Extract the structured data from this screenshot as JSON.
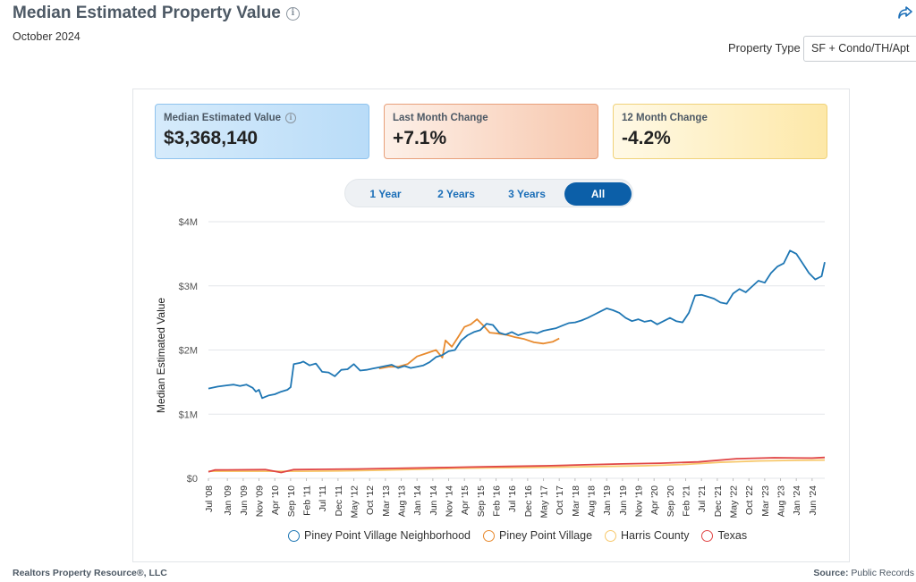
{
  "header": {
    "title": "Median Estimated Property Value",
    "subtitle": "October 2024"
  },
  "filter": {
    "label": "Property Type",
    "value": "SF + Condo/TH/Apt"
  },
  "cards": [
    {
      "label": "Median Estimated Value",
      "value": "$3,368,140"
    },
    {
      "label": "Last Month Change",
      "value": "+7.1%"
    },
    {
      "label": "12 Month Change",
      "value": "-4.2%"
    }
  ],
  "range_buttons": [
    "1 Year",
    "2 Years",
    "3 Years",
    "All"
  ],
  "active_range": "All",
  "footer": {
    "left": "Realtors Property Resource®, LLC",
    "source_label": "Source:",
    "source_value": "Public Records"
  },
  "colors": {
    "neighborhood": "#1f77b4",
    "village": "#e88a2e",
    "county": "#f7c86b",
    "texas": "#e04646"
  },
  "chart_data": {
    "type": "line",
    "ylabel": "Median Estimated Value",
    "xlabel": "",
    "ylim": [
      0,
      4000000
    ],
    "y_ticks": [
      0,
      1000000,
      2000000,
      3000000,
      4000000
    ],
    "y_tick_labels": [
      "$0",
      "$1M",
      "$2M",
      "$3M",
      "$4M"
    ],
    "x_tick_labels": [
      "Jul '08",
      "Jan '09",
      "Jun '09",
      "Nov '09",
      "Apr '10",
      "Sep '10",
      "Feb '11",
      "Jul '11",
      "Dec '11",
      "May '12",
      "Oct '12",
      "Mar '13",
      "Aug '13",
      "Jan '14",
      "Jun '14",
      "Nov '14",
      "Apr '15",
      "Sep '15",
      "Feb '16",
      "Jul '16",
      "Dec '16",
      "May '17",
      "Oct '17",
      "Mar '18",
      "Aug '18",
      "Jan '19",
      "Jun '19",
      "Nov '19",
      "Apr '20",
      "Sep '20",
      "Feb '21",
      "Jul '21",
      "Dec '21",
      "May '22",
      "Oct '22",
      "Mar '23",
      "Aug '23",
      "Jan '24",
      "Jun '24"
    ],
    "legend": "bottom",
    "grid": true,
    "series": [
      {
        "name": "Piney Point Village Neighborhood",
        "color": "#1f77b4",
        "x": [
          "2008-07",
          "2008-10",
          "2009-01",
          "2009-03",
          "2009-05",
          "2009-07",
          "2009-09",
          "2009-10",
          "2009-11",
          "2009-12",
          "2010-02",
          "2010-04",
          "2010-06",
          "2010-08",
          "2010-09",
          "2010-10",
          "2010-12",
          "2011-01",
          "2011-03",
          "2011-05",
          "2011-07",
          "2011-09",
          "2011-11",
          "2012-01",
          "2012-03",
          "2012-05",
          "2012-07",
          "2012-09",
          "2012-11",
          "2013-01",
          "2013-03",
          "2013-05",
          "2013-07",
          "2013-09",
          "2013-11",
          "2014-01",
          "2014-03",
          "2014-05",
          "2014-07",
          "2014-09",
          "2014-11",
          "2015-01",
          "2015-03",
          "2015-05",
          "2015-07",
          "2015-09",
          "2015-11",
          "2016-01",
          "2016-03",
          "2016-05",
          "2016-07",
          "2016-09",
          "2016-11",
          "2017-01",
          "2017-03",
          "2017-05",
          "2017-07",
          "2017-09",
          "2017-11",
          "2018-01",
          "2018-03",
          "2018-05",
          "2018-07",
          "2018-09",
          "2018-11",
          "2019-01",
          "2019-03",
          "2019-05",
          "2019-07",
          "2019-09",
          "2019-11",
          "2020-01",
          "2020-03",
          "2020-05",
          "2020-07",
          "2020-09",
          "2020-11",
          "2021-01",
          "2021-03",
          "2021-05",
          "2021-07",
          "2021-09",
          "2021-11",
          "2022-01",
          "2022-03",
          "2022-05",
          "2022-07",
          "2022-09",
          "2022-11",
          "2023-01",
          "2023-03",
          "2023-05",
          "2023-07",
          "2023-09",
          "2023-11",
          "2024-01",
          "2024-03",
          "2024-05",
          "2024-07",
          "2024-09",
          "2024-10"
        ],
        "values": [
          1400000,
          1430000,
          1450000,
          1460000,
          1440000,
          1460000,
          1410000,
          1350000,
          1380000,
          1250000,
          1290000,
          1310000,
          1350000,
          1380000,
          1420000,
          1780000,
          1800000,
          1820000,
          1760000,
          1790000,
          1660000,
          1650000,
          1590000,
          1690000,
          1700000,
          1780000,
          1680000,
          1690000,
          1710000,
          1730000,
          1750000,
          1770000,
          1720000,
          1750000,
          1720000,
          1740000,
          1760000,
          1810000,
          1890000,
          1920000,
          1980000,
          2000000,
          2150000,
          2230000,
          2280000,
          2310000,
          2410000,
          2390000,
          2270000,
          2240000,
          2280000,
          2230000,
          2260000,
          2280000,
          2260000,
          2300000,
          2320000,
          2340000,
          2380000,
          2420000,
          2430000,
          2460000,
          2500000,
          2550000,
          2600000,
          2650000,
          2620000,
          2580000,
          2500000,
          2450000,
          2480000,
          2440000,
          2460000,
          2400000,
          2450000,
          2500000,
          2450000,
          2430000,
          2580000,
          2850000,
          2860000,
          2830000,
          2800000,
          2740000,
          2720000,
          2880000,
          2950000,
          2900000,
          2990000,
          3080000,
          3050000,
          3200000,
          3300000,
          3350000,
          3550000,
          3500000,
          3350000,
          3200000,
          3100000,
          3150000,
          3370000
        ]
      },
      {
        "name": "Piney Point Village",
        "color": "#e88a2e",
        "x": [
          "2013-01",
          "2013-04",
          "2013-07",
          "2013-10",
          "2014-01",
          "2014-04",
          "2014-07",
          "2014-09",
          "2014-10",
          "2014-12",
          "2015-02",
          "2015-04",
          "2015-06",
          "2015-08",
          "2015-10",
          "2015-12",
          "2016-02",
          "2016-05",
          "2016-08",
          "2016-11",
          "2017-02",
          "2017-05",
          "2017-08",
          "2017-10"
        ],
        "values": [
          1710000,
          1740000,
          1740000,
          1780000,
          1900000,
          1950000,
          2000000,
          1880000,
          2150000,
          2050000,
          2200000,
          2360000,
          2400000,
          2480000,
          2380000,
          2270000,
          2260000,
          2240000,
          2200000,
          2170000,
          2120000,
          2100000,
          2130000,
          2180000
        ]
      },
      {
        "name": "Harris County",
        "color": "#f7c86b",
        "x": [
          "2008-07",
          "2010-01",
          "2011-01",
          "2012-01",
          "2013-01",
          "2014-01",
          "2015-01",
          "2016-01",
          "2017-01",
          "2018-01",
          "2019-01",
          "2020-01",
          "2021-01",
          "2022-01",
          "2023-01",
          "2024-01",
          "2024-10"
        ],
        "values": [
          110000,
          110000,
          110000,
          115000,
          125000,
          140000,
          155000,
          165000,
          170000,
          175000,
          185000,
          195000,
          215000,
          250000,
          270000,
          280000,
          285000
        ]
      },
      {
        "name": "Texas",
        "color": "#e04646",
        "x": [
          "2008-07",
          "2008-09",
          "2010-01",
          "2010-06",
          "2010-10",
          "2011-06",
          "2012-06",
          "2013-06",
          "2014-06",
          "2015-06",
          "2016-06",
          "2017-06",
          "2018-06",
          "2019-06",
          "2020-06",
          "2021-06",
          "2022-06",
          "2023-06",
          "2024-06",
          "2024-10"
        ],
        "values": [
          100000,
          130000,
          135000,
          90000,
          135000,
          140000,
          145000,
          155000,
          165000,
          175000,
          185000,
          195000,
          210000,
          225000,
          235000,
          255000,
          305000,
          320000,
          315000,
          325000
        ]
      }
    ]
  }
}
